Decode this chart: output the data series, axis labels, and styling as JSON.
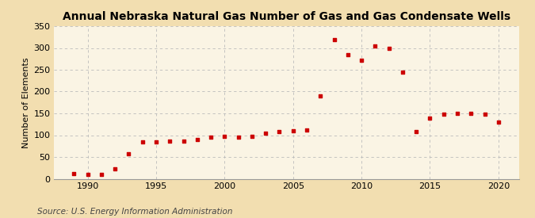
{
  "title": "Annual Nebraska Natural Gas Number of Gas and Gas Condensate Wells",
  "ylabel": "Number of Elements",
  "source": "Source: U.S. Energy Information Administration",
  "background_color": "#f2deb0",
  "plot_background_color": "#faf4e4",
  "marker_color": "#cc0000",
  "years": [
    1989,
    1990,
    1991,
    1992,
    1993,
    1994,
    1995,
    1996,
    1997,
    1998,
    1999,
    2000,
    2001,
    2002,
    2003,
    2004,
    2005,
    2006,
    2007,
    2008,
    2009,
    2010,
    2011,
    2012,
    2013,
    2014,
    2015,
    2016,
    2017,
    2018,
    2019,
    2020
  ],
  "values": [
    12,
    10,
    10,
    23,
    58,
    85,
    85,
    87,
    87,
    90,
    95,
    98,
    95,
    97,
    105,
    108,
    110,
    112,
    190,
    320,
    285,
    272,
    305,
    300,
    245,
    108,
    140,
    148,
    150,
    150,
    148,
    130
  ],
  "xlim": [
    1987.5,
    2021.5
  ],
  "ylim": [
    0,
    350
  ],
  "yticks": [
    0,
    50,
    100,
    150,
    200,
    250,
    300,
    350
  ],
  "xticks": [
    1990,
    1995,
    2000,
    2005,
    2010,
    2015,
    2020
  ],
  "title_fontsize": 10,
  "label_fontsize": 8,
  "tick_fontsize": 8,
  "source_fontsize": 7.5
}
